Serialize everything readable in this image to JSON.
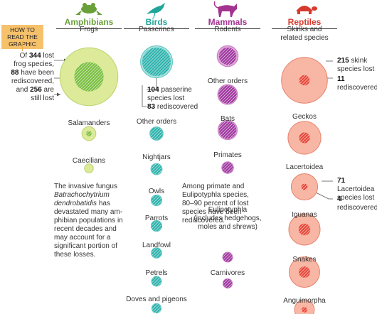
{
  "how_to_read": "HOW TO READ THE GRAPHIC",
  "notes": {
    "frogs_lost_a": "Of ",
    "frogs_lost_n": "344",
    "frogs_lost_b": " lost",
    "frogs_lost_c": "frog species,",
    "frogs_redisc_n": "88",
    "frogs_redisc_b": " have been",
    "frogs_redisc_c": "rediscovered,",
    "frogs_and": "and ",
    "frogs_still_n": "256",
    "frogs_still_b": " are",
    "frogs_still_c": "still lost",
    "passerine_lost_n": "104",
    "passerine_lost_b": " passerine",
    "passerine_lost_c": "species lost",
    "passerine_redisc_n": "83",
    "passerine_redisc_b": " rediscovered",
    "skink_lost_n": "215",
    "skink_lost_b": " skink",
    "skink_lost_c": "species lost",
    "skink_redisc_n": "11",
    "skink_redisc_b": " rediscovered",
    "lacert_lost_n": "71",
    "lacert_lost_b": " Lacertoidea",
    "lacert_lost_c": "species lost",
    "lacert_redisc_n": "4",
    "lacert_redisc_b": " rediscovered"
  },
  "paragraphs": {
    "fungus_1": "The invasive fungus",
    "fungus_2": "Batrachochytrium",
    "fungus_3": "dendrobatidis",
    "fungus_4": " has",
    "fungus_5": "devastated many am-",
    "fungus_6": "phibian populations in",
    "fungus_7": "recent decades and",
    "fungus_8": "may account for a",
    "fungus_9": "significant portion of",
    "fungus_10": "these losses.",
    "primate_1": "Among primate and",
    "primate_2": "Eulipotyphla species,",
    "primate_3": "80–90 percent of lost",
    "primate_4": "species have been",
    "primate_5": "rediscovered."
  },
  "colors": {
    "Amphibians": {
      "heading": "#6aa03a",
      "outer": "#dcea9a",
      "inner": "#7cc043",
      "stroke": "#b9d46a"
    },
    "Birds": {
      "heading": "#21a59a",
      "outer": "#a8e2e0",
      "inner": "#2fb3ad",
      "stroke": "#5cc6c1"
    },
    "Mammals": {
      "heading": "#a3338f",
      "outer": "#e0a2d8",
      "inner": "#a13ba1",
      "stroke": "#c57ac3"
    },
    "Reptiles": {
      "heading": "#d63a2e",
      "outer": "#f8b7a4",
      "inner": "#e8483a",
      "stroke": "#e8806d"
    }
  },
  "icons": [
    "frog-icon",
    "bird-icon",
    "cat-icon",
    "turtle-icon"
  ],
  "chart_data": {
    "type": "proportional-circles",
    "encoding": "outer circle area = species lost; inner hatched circle area = species rediscovered",
    "groups": [
      {
        "name": "Amphibians",
        "categories": [
          {
            "label": "Frogs",
            "lost": 344,
            "rediscovered": 88
          },
          {
            "label": "Salamanders",
            "lost": 20,
            "rediscovered": 3
          },
          {
            "label": "Caecilians",
            "lost": 8,
            "rediscovered": 0
          }
        ]
      },
      {
        "name": "Birds",
        "categories": [
          {
            "label": "Passerines",
            "lost": 104,
            "rediscovered": 83
          },
          {
            "label": "Other orders",
            "lost": 18,
            "rediscovered": 16
          },
          {
            "label": "Nightjars",
            "lost": 13,
            "rediscovered": 11
          },
          {
            "label": "Owls",
            "lost": 12,
            "rediscovered": 10
          },
          {
            "label": "Parrots",
            "lost": 12,
            "rediscovered": 11
          },
          {
            "label": "Landfowl",
            "lost": 11,
            "rediscovered": 10
          },
          {
            "label": "Petrels",
            "lost": 10,
            "rediscovered": 9
          },
          {
            "label": "Doves and pigeons",
            "lost": 9,
            "rediscovered": 8
          }
        ]
      },
      {
        "name": "Mammals",
        "categories": [
          {
            "label": "Rodents",
            "lost": 45,
            "rediscovered": 30
          },
          {
            "label": "Other orders",
            "lost": 40,
            "rediscovered": 34
          },
          {
            "label": "Bats",
            "lost": 38,
            "rediscovered": 31
          },
          {
            "label": "Primates",
            "lost": 14,
            "rediscovered": 12
          },
          {
            "label": "Eulipotyphla\n(includes hedgehogs,\nmoles and shrews)",
            "lost": 10,
            "rediscovered": 9
          },
          {
            "label": "Carnivores",
            "lost": 9,
            "rediscovered": 8
          }
        ]
      },
      {
        "name": "Reptiles",
        "categories": [
          {
            "label": "Skinks and\nrelated species",
            "lost": 215,
            "rediscovered": 11
          },
          {
            "label": "Geckos",
            "lost": 110,
            "rediscovered": 12
          },
          {
            "label": "Lacertoidea",
            "lost": 71,
            "rediscovered": 4
          },
          {
            "label": "Iguanas",
            "lost": 100,
            "rediscovered": 14
          },
          {
            "label": "Snakes",
            "lost": 95,
            "rediscovered": 13
          },
          {
            "label": "Anguimorpha",
            "lost": 40,
            "rediscovered": 3
          }
        ]
      }
    ]
  }
}
